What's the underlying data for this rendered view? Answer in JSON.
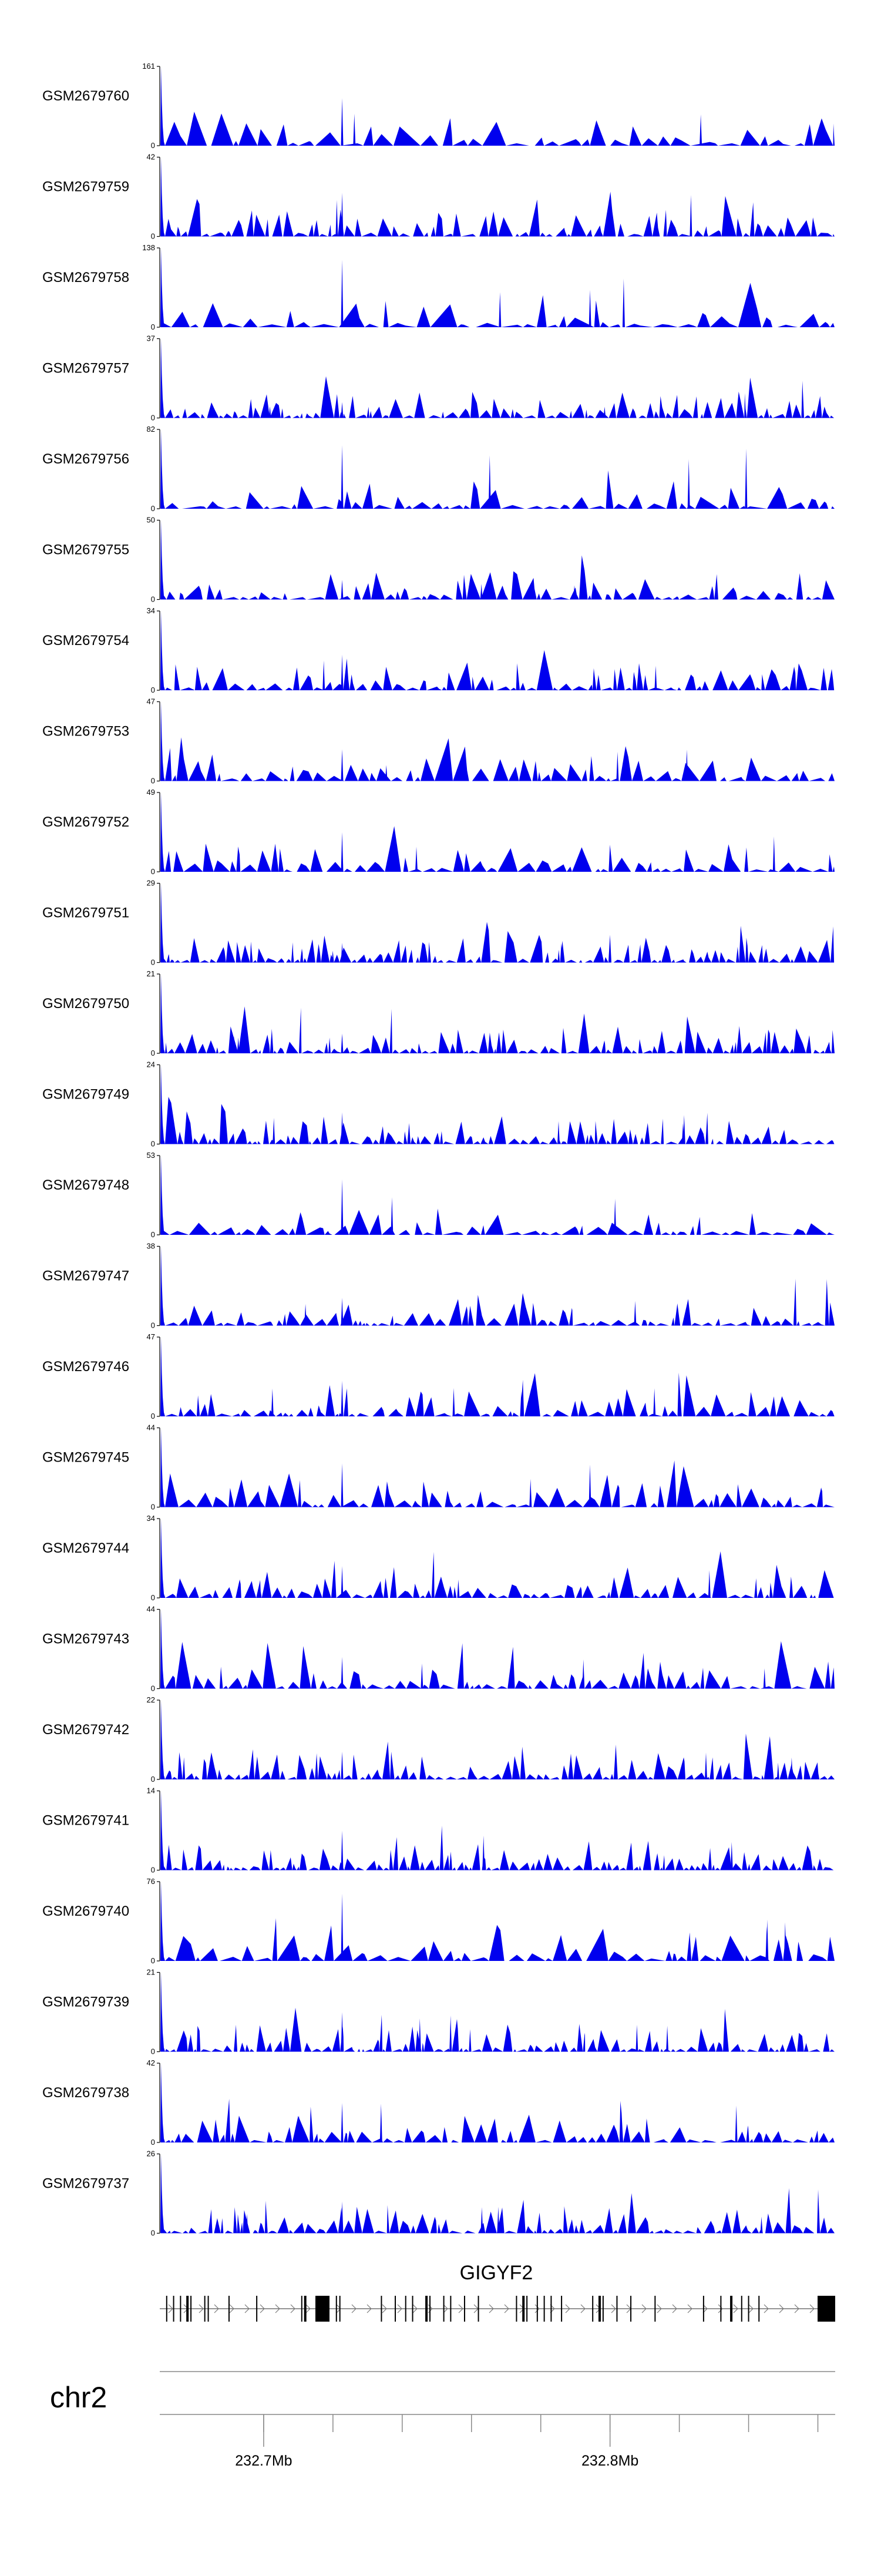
{
  "chart_data": {
    "type": "area",
    "genome_region": {
      "chromosome": "chr2",
      "start_mb": 232.67,
      "end_mb": 232.865
    },
    "axis_ticks": [
      {
        "position_mb": 232.7,
        "label": "232.7Mb"
      },
      {
        "position_mb": 232.8,
        "label": "232.8Mb"
      }
    ],
    "minor_ticks_mb": [
      232.7,
      232.72,
      232.74,
      232.76,
      232.78,
      232.8,
      232.82,
      232.84,
      232.86
    ],
    "fill_color": "#0000ee",
    "gene": {
      "name": "GIGYF2",
      "color": "#000000",
      "start_mb": 232.67,
      "end_mb": 232.865,
      "strand": "+",
      "exons_mb": [
        232.672,
        232.674,
        232.676,
        232.678,
        232.679,
        232.683,
        232.684,
        232.69,
        232.698,
        232.711,
        232.712,
        232.721,
        232.722,
        232.734,
        232.738,
        232.741,
        232.743,
        232.747,
        232.748,
        232.752,
        232.754,
        232.758,
        232.762,
        232.773,
        232.775,
        232.776,
        232.779,
        232.781,
        232.783,
        232.786,
        232.795,
        232.797,
        232.798,
        232.802,
        232.806,
        232.813,
        232.827,
        232.832,
        232.835,
        232.838,
        232.84,
        232.843
      ]
    },
    "tracks": [
      {
        "label": "GSM2679760",
        "ymax": 161,
        "seed": 760,
        "peak": 0.6,
        "density": 0.9
      },
      {
        "label": "GSM2679759",
        "ymax": 42,
        "seed": 759,
        "peak": 0.55,
        "density": 1.6
      },
      {
        "label": "GSM2679758",
        "ymax": 138,
        "seed": 758,
        "peak": 0.85,
        "density": 0.9
      },
      {
        "label": "GSM2679757",
        "ymax": 37,
        "seed": 757,
        "peak": 0.2,
        "density": 1.8
      },
      {
        "label": "GSM2679756",
        "ymax": 82,
        "seed": 756,
        "peak": 0.8,
        "density": 1.0
      },
      {
        "label": "GSM2679755",
        "ymax": 50,
        "seed": 755,
        "peak": 0.25,
        "density": 1.4
      },
      {
        "label": "GSM2679754",
        "ymax": 34,
        "seed": 754,
        "peak": 0.45,
        "density": 1.5
      },
      {
        "label": "GSM2679753",
        "ymax": 47,
        "seed": 753,
        "peak": 0.4,
        "density": 1.4
      },
      {
        "label": "GSM2679752",
        "ymax": 49,
        "seed": 752,
        "peak": 0.5,
        "density": 1.3
      },
      {
        "label": "GSM2679751",
        "ymax": 29,
        "seed": 751,
        "peak": 0.25,
        "density": 2.0
      },
      {
        "label": "GSM2679750",
        "ymax": 21,
        "seed": 750,
        "peak": 0.25,
        "density": 2.1
      },
      {
        "label": "GSM2679749",
        "ymax": 24,
        "seed": 749,
        "peak": 0.4,
        "density": 2.0
      },
      {
        "label": "GSM2679748",
        "ymax": 53,
        "seed": 748,
        "peak": 0.7,
        "density": 1.2
      },
      {
        "label": "GSM2679747",
        "ymax": 38,
        "seed": 747,
        "peak": 0.35,
        "density": 1.6
      },
      {
        "label": "GSM2679746",
        "ymax": 47,
        "seed": 746,
        "peak": 0.45,
        "density": 1.5
      },
      {
        "label": "GSM2679745",
        "ymax": 44,
        "seed": 745,
        "peak": 0.55,
        "density": 1.4
      },
      {
        "label": "GSM2679744",
        "ymax": 34,
        "seed": 744,
        "peak": 0.4,
        "density": 1.6
      },
      {
        "label": "GSM2679743",
        "ymax": 44,
        "seed": 743,
        "peak": 0.4,
        "density": 1.5
      },
      {
        "label": "GSM2679742",
        "ymax": 22,
        "seed": 742,
        "peak": 0.35,
        "density": 2.1
      },
      {
        "label": "GSM2679741",
        "ymax": 14,
        "seed": 741,
        "peak": 0.5,
        "density": 2.3
      },
      {
        "label": "GSM2679740",
        "ymax": 76,
        "seed": 740,
        "peak": 0.85,
        "density": 1.1
      },
      {
        "label": "GSM2679739",
        "ymax": 21,
        "seed": 739,
        "peak": 0.5,
        "density": 2.1
      },
      {
        "label": "GSM2679738",
        "ymax": 42,
        "seed": 738,
        "peak": 0.5,
        "density": 1.5
      },
      {
        "label": "GSM2679737",
        "ymax": 26,
        "seed": 737,
        "peak": 0.4,
        "density": 1.9
      }
    ]
  }
}
